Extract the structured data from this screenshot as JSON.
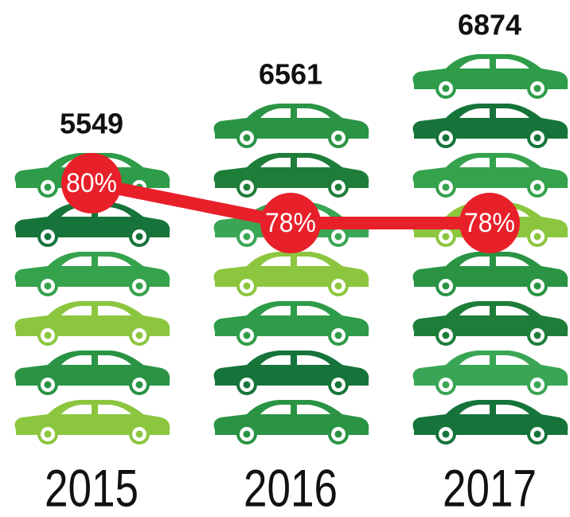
{
  "chart_data": {
    "type": "pictograph",
    "categories": [
      "2015",
      "2016",
      "2017"
    ],
    "series": [
      {
        "values": [
          5549,
          6561,
          6874
        ],
        "color": "#2e9c48"
      },
      {
        "values": [
          80,
          78,
          78
        ],
        "value_labels": [
          "80%",
          "78%",
          "78%"
        ],
        "color": "#e8202a"
      }
    ]
  }
}
